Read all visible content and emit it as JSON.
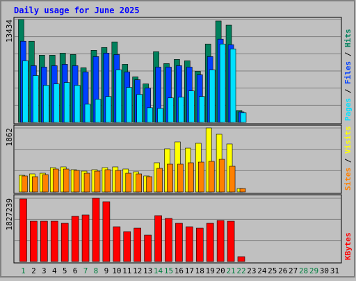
{
  "chart_data": [
    {
      "type": "bar",
      "title": "Daily usage for June 2025",
      "ylim": [
        0,
        13434
      ],
      "yticks": [
        13434
      ],
      "legend_separator": " / ",
      "series": [
        {
          "name": "Hits",
          "color": "#00805c",
          "values": [
            13434,
            10601,
            8773,
            8773,
            9047,
            8864,
            7128,
            9413,
            9779,
            10510,
            7585,
            5940,
            5026,
            9230,
            7677,
            8225,
            8042,
            6671,
            10235,
            13251,
            12703,
            1554,
            0,
            0,
            0,
            0,
            0,
            0,
            0,
            0,
            0
          ]
        },
        {
          "name": "Files",
          "color": "#0040ff",
          "values": [
            10601,
            7403,
            7220,
            7403,
            7585,
            7403,
            6580,
            8591,
            9047,
            8864,
            6580,
            5575,
            4478,
            7220,
            7220,
            7403,
            7220,
            6214,
            8591,
            10875,
            10144,
            1371,
            0,
            0,
            0,
            0,
            0,
            0,
            0,
            0,
            0
          ]
        },
        {
          "name": "Pages",
          "color": "#00e0ff",
          "values": [
            8042,
            6123,
            4844,
            5026,
            5209,
            4844,
            2376,
            3016,
            3381,
            6854,
            4569,
            3656,
            1919,
            1828,
            3199,
            3290,
            4113,
            3381,
            6854,
            10235,
            9596,
            1279,
            0,
            0,
            0,
            0,
            0,
            0,
            0,
            0,
            0
          ]
        }
      ]
    },
    {
      "type": "bar",
      "ylim": [
        0,
        1862
      ],
      "yticks": [
        1862
      ],
      "legend_separator": " / ",
      "series": [
        {
          "name": "Visits",
          "color": "#ffff00",
          "values": [
            486,
            526,
            546,
            708,
            729,
            648,
            607,
            648,
            708,
            729,
            668,
            587,
            466,
            850,
            1255,
            1457,
            1275,
            1417,
            1862,
            1680,
            1397,
            101,
            0,
            0,
            0,
            0,
            0,
            0,
            0,
            0,
            0
          ]
        },
        {
          "name": "Sites",
          "color": "#ff8000",
          "values": [
            466,
            445,
            506,
            668,
            668,
            627,
            546,
            607,
            648,
            627,
            546,
            526,
            445,
            688,
            810,
            810,
            850,
            870,
            891,
            951,
            749,
            101,
            0,
            0,
            0,
            0,
            0,
            0,
            0,
            0,
            0
          ]
        }
      ]
    },
    {
      "type": "bar",
      "ylim": [
        0,
        1827239
      ],
      "yticks": [
        1827239
      ],
      "categories": [
        "1",
        "2",
        "3",
        "4",
        "5",
        "6",
        "7",
        "8",
        "9",
        "10",
        "11",
        "12",
        "13",
        "14",
        "15",
        "16",
        "17",
        "18",
        "19",
        "20",
        "21",
        "22",
        "23",
        "24",
        "25",
        "26",
        "27",
        "28",
        "29",
        "30",
        "31"
      ],
      "highlight_categories": [
        "1",
        "7",
        "8",
        "14",
        "15",
        "21",
        "22",
        "28",
        "29"
      ],
      "highlight_color": "#008040",
      "series": [
        {
          "name": "KBytes",
          "color": "#ff0000",
          "values": [
            1807160,
            1164613,
            1164613,
            1164613,
            1104376,
            1305154,
            1345310,
            1827239,
            1726850,
            1003978,
            863421,
            963822,
            763020,
            1325232,
            1244918,
            1104376,
            1003978,
            963822,
            1104376,
            1184692,
            1164613,
            140557,
            0,
            0,
            0,
            0,
            0,
            0,
            0,
            0,
            0
          ]
        }
      ]
    }
  ]
}
